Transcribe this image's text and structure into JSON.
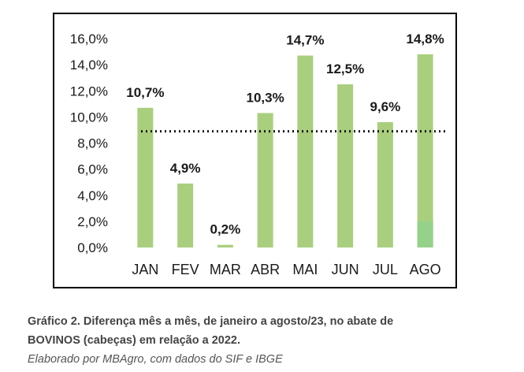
{
  "chart_data": {
    "type": "bar",
    "categories": [
      "JAN",
      "FEV",
      "MAR",
      "ABR",
      "MAI",
      "JUN",
      "JUL",
      "AGO"
    ],
    "values": [
      10.7,
      4.9,
      0.2,
      10.3,
      14.7,
      12.5,
      9.6,
      14.8
    ],
    "data_labels": [
      "10,7%",
      "4,9%",
      "0,2%",
      "10,3%",
      "14,7%",
      "12,5%",
      "9,6%",
      "14,8%"
    ],
    "y_ticks": [
      0,
      2,
      4,
      6,
      8,
      10,
      12,
      14,
      16
    ],
    "y_tick_labels": [
      "0,0%",
      "2,0%",
      "4,0%",
      "6,0%",
      "8,0%",
      "10,0%",
      "12,0%",
      "14,0%",
      "16,0%"
    ],
    "ylim": [
      0,
      16
    ],
    "reference_line": {
      "value": 8.9,
      "style": "dotted"
    },
    "grid": false,
    "title": "",
    "xlabel": "",
    "ylabel": "",
    "bar_color": "#a9cf7e",
    "highlight_segment": {
      "category": "AGO",
      "value": 2.0,
      "color": "#95d18a"
    }
  },
  "caption": {
    "line1": "Gráfico 2.  Diferença mês a mês, de janeiro a agosto/23, no abate de",
    "line2": "BOVINOS (cabeças) em relação a 2022.",
    "source": "Elaborado por MBAgro, com dados do SIF e IBGE"
  }
}
